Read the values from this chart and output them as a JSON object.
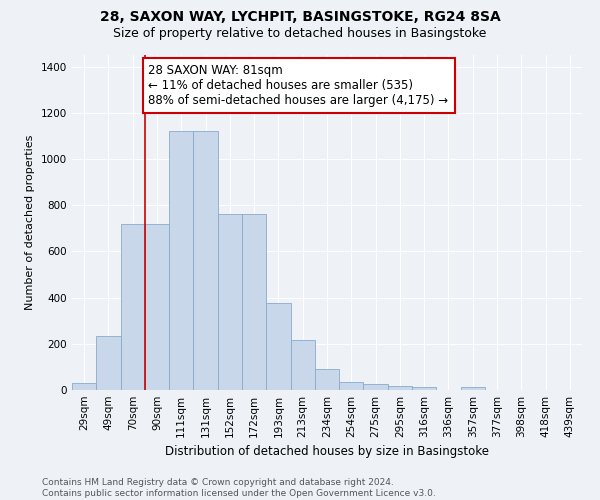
{
  "title1": "28, SAXON WAY, LYCHPIT, BASINGSTOKE, RG24 8SA",
  "title2": "Size of property relative to detached houses in Basingstoke",
  "xlabel": "Distribution of detached houses by size in Basingstoke",
  "ylabel": "Number of detached properties",
  "categories": [
    "29sqm",
    "49sqm",
    "70sqm",
    "90sqm",
    "111sqm",
    "131sqm",
    "152sqm",
    "172sqm",
    "193sqm",
    "213sqm",
    "234sqm",
    "254sqm",
    "275sqm",
    "295sqm",
    "316sqm",
    "336sqm",
    "357sqm",
    "377sqm",
    "398sqm",
    "418sqm",
    "439sqm"
  ],
  "values": [
    30,
    235,
    720,
    720,
    1120,
    1120,
    760,
    760,
    375,
    215,
    90,
    35,
    25,
    18,
    15,
    0,
    15,
    0,
    0,
    0,
    0
  ],
  "bar_color": "#c8d8ea",
  "bar_edge_color": "#8aaac8",
  "vline_x": 2.5,
  "vline_color": "#cc0000",
  "annotation_text": "28 SAXON WAY: 81sqm\n← 11% of detached houses are smaller (535)\n88% of semi-detached houses are larger (4,175) →",
  "annotation_box_facecolor": "#ffffff",
  "annotation_box_edgecolor": "#cc0000",
  "ylim": [
    0,
    1450
  ],
  "yticks": [
    0,
    200,
    400,
    600,
    800,
    1000,
    1200,
    1400
  ],
  "bg_color": "#eef2f7",
  "plot_bg_color": "#eef2f7",
  "grid_color": "#ffffff",
  "footer": "Contains HM Land Registry data © Crown copyright and database right 2024.\nContains public sector information licensed under the Open Government Licence v3.0.",
  "title1_fontsize": 10,
  "title2_fontsize": 9,
  "xlabel_fontsize": 8.5,
  "ylabel_fontsize": 8,
  "tick_fontsize": 7.5,
  "annotation_fontsize": 8.5,
  "footer_fontsize": 6.5
}
